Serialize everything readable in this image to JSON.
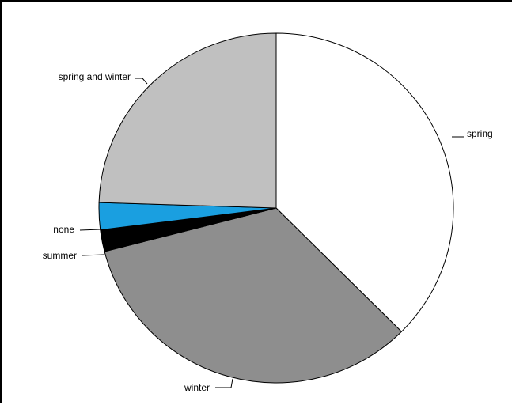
{
  "chart_data": {
    "type": "pie",
    "title": "",
    "start_angle_deg": 0,
    "direction": "clockwise",
    "slices": [
      {
        "label": "spring",
        "value": 37.5,
        "color": "#ffffff"
      },
      {
        "label": "winter",
        "value": 33.5,
        "color": "#8e8e8e"
      },
      {
        "label": "summer",
        "value": 2.0,
        "color": "#000000"
      },
      {
        "label": "none",
        "value": 2.5,
        "color": "#1a9fe0"
      },
      {
        "label": "spring and winter",
        "value": 24.5,
        "color": "#c0c0c0"
      }
    ]
  }
}
